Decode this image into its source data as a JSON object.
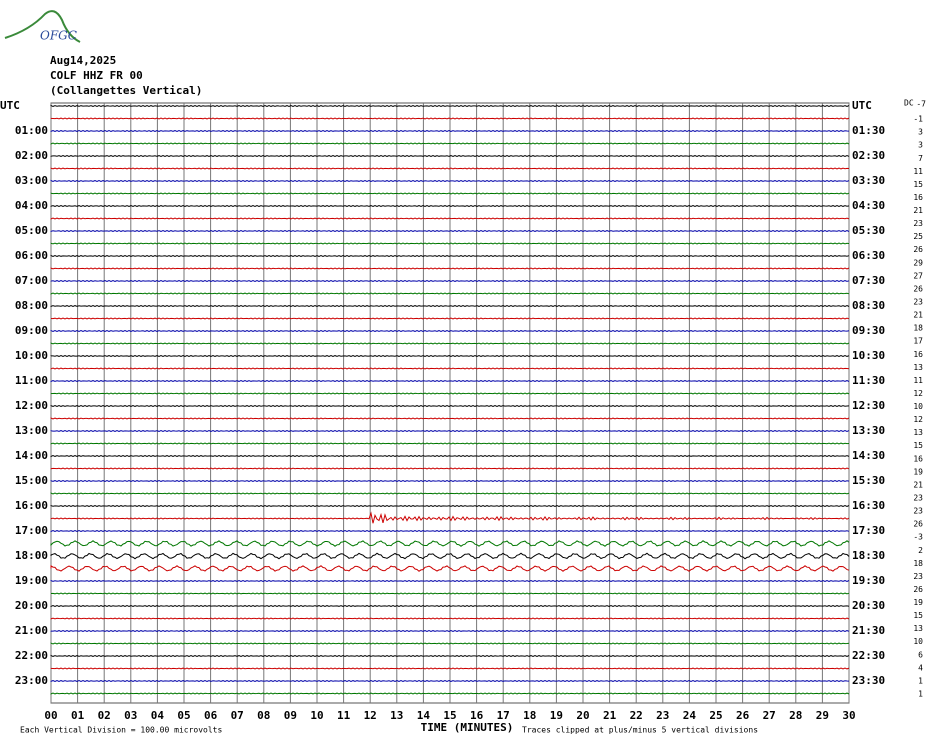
{
  "header": {
    "logo": "OFGC",
    "date": "Aug14,2025",
    "station": "COLF HHZ FR 00",
    "location": "(Collangettes Vertical)"
  },
  "left_labels": [
    "UTC",
    "01:00",
    "02:00",
    "03:00",
    "04:00",
    "05:00",
    "06:00",
    "07:00",
    "08:00",
    "09:00",
    "10:00",
    "11:00",
    "12:00",
    "13:00",
    "14:00",
    "15:00",
    "16:00",
    "17:00",
    "18:00",
    "19:00",
    "20:00",
    "21:00",
    "22:00",
    "23:00"
  ],
  "right_labels": [
    "UTC",
    "01:30",
    "02:30",
    "03:30",
    "04:30",
    "05:30",
    "06:30",
    "07:30",
    "08:30",
    "09:30",
    "10:30",
    "11:30",
    "12:30",
    "13:30",
    "14:30",
    "15:30",
    "16:30",
    "17:30",
    "18:30",
    "19:30",
    "20:30",
    "21:30",
    "22:30",
    "23:30"
  ],
  "dc": {
    "title": "DC",
    "values": [
      -7,
      -1,
      3,
      3,
      7,
      11,
      15,
      16,
      21,
      23,
      25,
      26,
      29,
      27,
      26,
      23,
      21,
      18,
      17,
      16,
      13,
      11,
      12,
      10,
      12,
      13,
      15,
      16,
      19,
      21,
      23,
      23,
      26,
      -3,
      2,
      18,
      23,
      26,
      19,
      15,
      13,
      10,
      6,
      4,
      1,
      1
    ]
  },
  "x_axis": {
    "title": "TIME (MINUTES)",
    "ticks": [
      "00",
      "01",
      "02",
      "03",
      "04",
      "05",
      "06",
      "07",
      "08",
      "09",
      "10",
      "11",
      "12",
      "13",
      "14",
      "15",
      "16",
      "17",
      "18",
      "19",
      "20",
      "21",
      "22",
      "23",
      "24",
      "25",
      "26",
      "27",
      "28",
      "29",
      "30"
    ]
  },
  "footer": {
    "scale": "Each Vertical Division =  100.00 microvolts",
    "clip": "Traces clipped at plus/minus 5 vertical divisions"
  }
}
